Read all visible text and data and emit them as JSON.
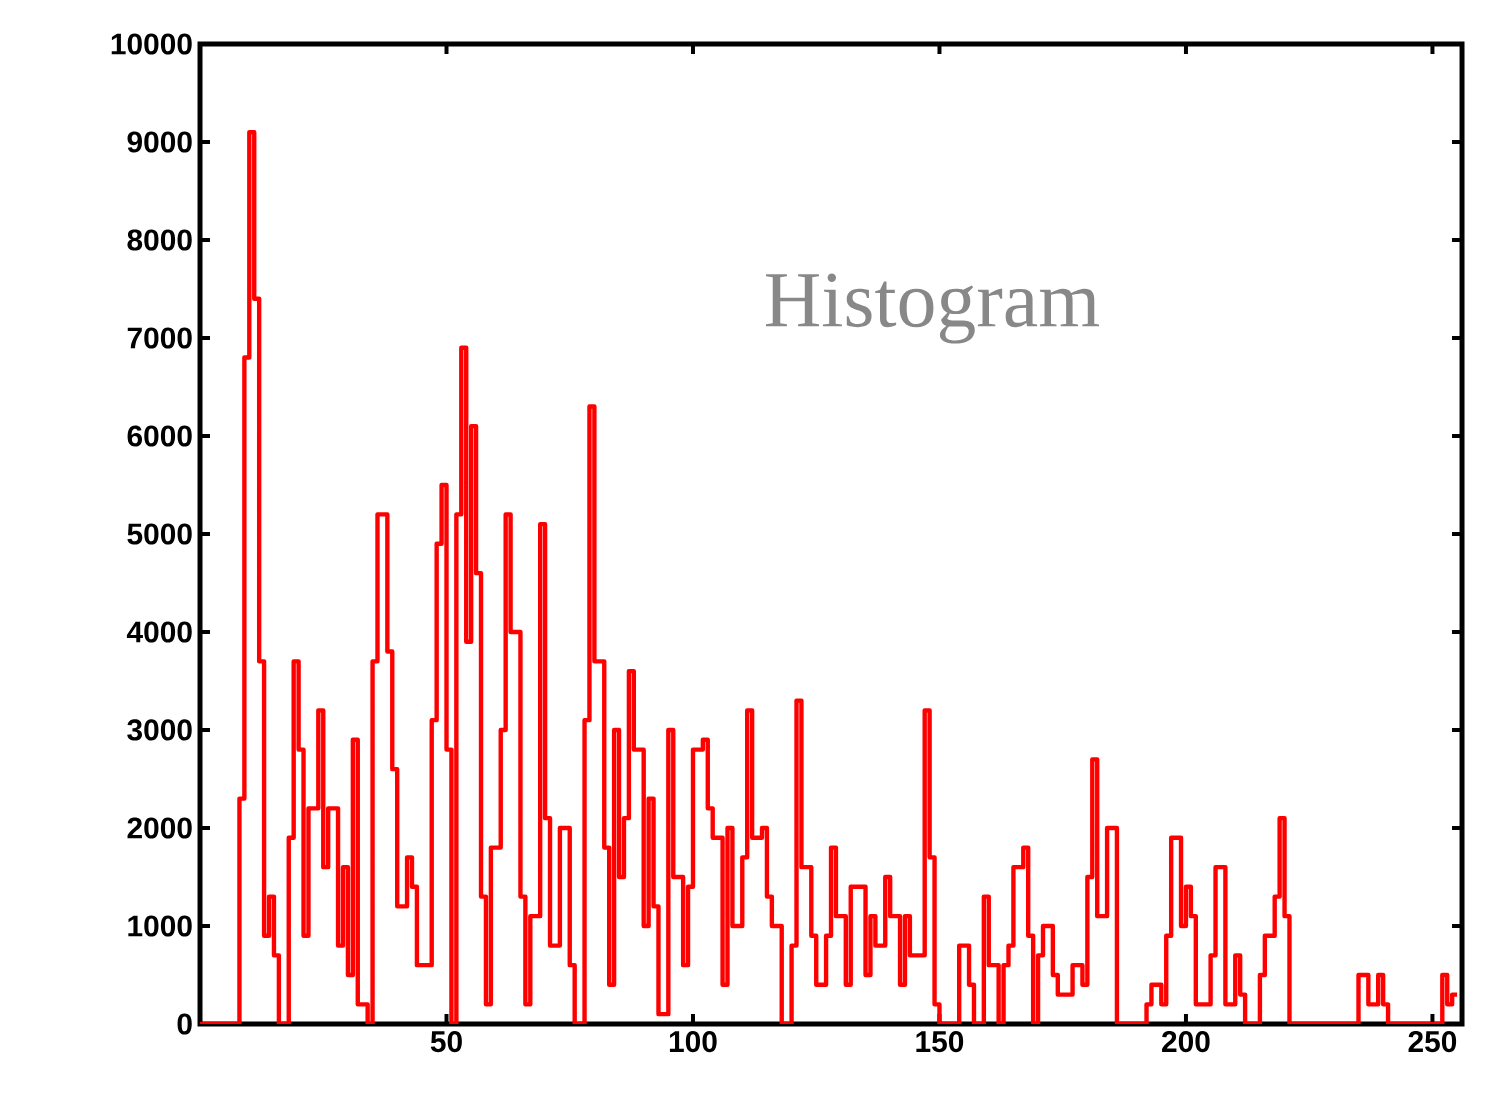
{
  "chart_data": {
    "type": "step",
    "annotations": [
      "Histogram"
    ],
    "x": [
      0,
      8,
      9,
      10,
      11,
      12,
      13,
      14,
      15,
      16,
      18,
      19,
      20,
      21,
      22,
      24,
      25,
      26,
      28,
      29,
      30,
      31,
      32,
      34,
      35,
      36,
      38,
      39,
      40,
      42,
      43,
      44,
      47,
      48,
      49,
      50,
      51,
      52,
      53,
      54,
      55,
      56,
      57,
      58,
      59,
      61,
      62,
      63,
      65,
      66,
      67,
      69,
      70,
      71,
      73,
      75,
      76,
      78,
      79,
      80,
      82,
      83,
      84,
      85,
      86,
      87,
      88,
      90,
      91,
      92,
      93,
      95,
      96,
      98,
      99,
      100,
      102,
      103,
      104,
      106,
      107,
      108,
      110,
      111,
      112,
      114,
      115,
      116,
      118,
      120,
      121,
      122,
      124,
      125,
      127,
      128,
      129,
      131,
      132,
      133,
      135,
      136,
      137,
      139,
      140,
      142,
      143,
      144,
      147,
      148,
      149,
      150,
      154,
      156,
      157,
      159,
      160,
      162,
      163,
      164,
      165,
      167,
      168,
      169,
      170,
      171,
      173,
      174,
      177,
      179,
      180,
      181,
      182,
      184,
      186,
      192,
      193,
      195,
      196,
      197,
      199,
      200,
      201,
      202,
      204,
      205,
      206,
      208,
      210,
      211,
      212,
      215,
      216,
      218,
      219,
      220,
      221,
      235,
      237,
      239,
      240,
      241,
      252,
      253,
      254,
      255
    ],
    "values": [
      0,
      2300,
      6800,
      9100,
      7400,
      3700,
      900,
      1300,
      700,
      0,
      1900,
      3700,
      2800,
      900,
      2200,
      3200,
      1600,
      2200,
      800,
      1600,
      500,
      2900,
      200,
      0,
      3700,
      5200,
      3800,
      2600,
      1200,
      1700,
      1400,
      600,
      3100,
      4900,
      5500,
      2800,
      0,
      5200,
      6900,
      3900,
      6100,
      4600,
      1300,
      200,
      1800,
      3000,
      5200,
      4000,
      1300,
      200,
      1100,
      5100,
      2100,
      800,
      2000,
      600,
      0,
      3100,
      6300,
      3700,
      1800,
      400,
      3000,
      1500,
      2100,
      3600,
      2800,
      1000,
      2300,
      1200,
      100,
      3000,
      1500,
      600,
      1400,
      2800,
      2900,
      2200,
      1900,
      400,
      2000,
      1000,
      1700,
      3200,
      1900,
      2000,
      1300,
      1000,
      0,
      800,
      3300,
      1600,
      900,
      400,
      900,
      1800,
      1100,
      400,
      1400,
      1400,
      500,
      1100,
      800,
      1500,
      1100,
      400,
      1100,
      700,
      3200,
      1700,
      200,
      0,
      800,
      400,
      0,
      1300,
      600,
      0,
      600,
      800,
      1600,
      1800,
      900,
      0,
      700,
      1000,
      500,
      300,
      600,
      400,
      1500,
      2700,
      1100,
      2000,
      0,
      200,
      400,
      200,
      900,
      1900,
      1000,
      1400,
      1100,
      200,
      200,
      700,
      1600,
      200,
      700,
      300,
      0,
      500,
      900,
      1300,
      2100,
      1100,
      0,
      500,
      200,
      500,
      200,
      0,
      500,
      200,
      300,
      300
    ],
    "color": "#ff0000",
    "xlim": [
      0,
      256
    ],
    "xticks": [
      50,
      100,
      150,
      200,
      250
    ],
    "ylim": [
      0,
      10000
    ],
    "yticks": [
      0,
      1000,
      2000,
      3000,
      4000,
      5000,
      6000,
      7000,
      8000,
      9000,
      10000
    ],
    "grid": false
  }
}
